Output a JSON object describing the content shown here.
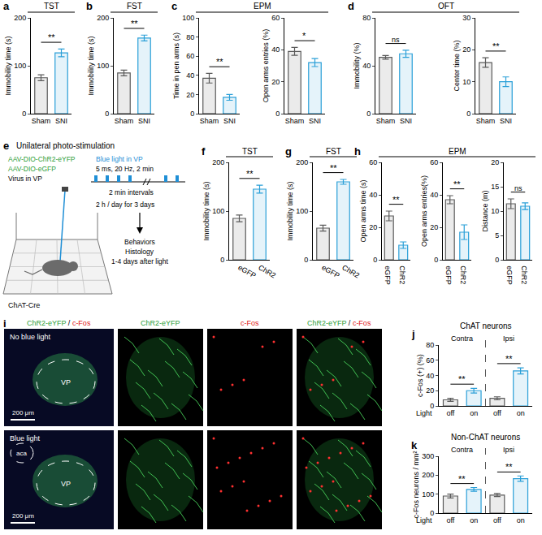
{
  "chart_data": [
    {
      "panel": "a",
      "type": "bar",
      "categories": [
        "Sham",
        "SNI"
      ],
      "values": [
        75,
        127
      ],
      "errors": [
        6,
        8
      ],
      "colors": [
        "#5a5a5a",
        "#2a9fd8"
      ],
      "y_label": "Immobility time (s)",
      "ylim": [
        0,
        200
      ],
      "yticks": [
        0,
        100,
        200
      ],
      "significance": [
        {
          "pair": [
            0,
            1
          ],
          "label": "**"
        }
      ]
    },
    {
      "panel": "b",
      "type": "bar",
      "categories": [
        "Sham",
        "SNI"
      ],
      "values": [
        85,
        158
      ],
      "errors": [
        6,
        6
      ],
      "colors": [
        "#5a5a5a",
        "#2a9fd8"
      ],
      "y_label": "Immobility time (s)",
      "ylim": [
        0,
        200
      ],
      "yticks": [
        0,
        100,
        200
      ],
      "significance": [
        {
          "pair": [
            0,
            1
          ],
          "label": "**"
        }
      ]
    },
    {
      "panel": "c",
      "type": "bar",
      "categories": [
        "Sham",
        "SNI"
      ],
      "values": [
        37,
        17
      ],
      "errors": [
        5,
        3
      ],
      "colors": [
        "#5a5a5a",
        "#2a9fd8"
      ],
      "y_label": "Time in pen arms (s)",
      "ylim": [
        0,
        100
      ],
      "yticks": [
        0,
        20,
        40,
        60,
        80,
        100
      ],
      "significance": [
        {
          "pair": [
            0,
            1
          ],
          "label": "**"
        }
      ]
    },
    {
      "panel": "c",
      "type": "bar",
      "categories": [
        "Sham",
        "SNI"
      ],
      "values": [
        39,
        32
      ],
      "errors": [
        2.5,
        2.5
      ],
      "colors": [
        "#5a5a5a",
        "#2a9fd8"
      ],
      "y_label": "Open arms entries (%)",
      "ylim": [
        0,
        60
      ],
      "yticks": [
        0,
        20,
        40,
        60
      ],
      "significance": [
        {
          "pair": [
            0,
            1
          ],
          "label": "*"
        }
      ]
    },
    {
      "panel": "d",
      "type": "bar",
      "categories": [
        "Sham",
        "SNI"
      ],
      "values": [
        47,
        50
      ],
      "errors": [
        1.5,
        3
      ],
      "colors": [
        "#5a5a5a",
        "#2a9fd8"
      ],
      "y_label": "Immobility (%)",
      "ylim": [
        0,
        80
      ],
      "yticks": [
        0,
        40,
        80
      ],
      "significance": [
        {
          "pair": [
            0,
            1
          ],
          "label": "ns"
        }
      ]
    },
    {
      "panel": "d",
      "type": "bar",
      "categories": [
        "Sham",
        "SNI"
      ],
      "values": [
        16,
        10
      ],
      "errors": [
        1.5,
        1.5
      ],
      "colors": [
        "#5a5a5a",
        "#2a9fd8"
      ],
      "y_label": "Center time (%)",
      "ylim": [
        0,
        30
      ],
      "yticks": [
        0,
        10,
        20,
        30
      ],
      "significance": [
        {
          "pair": [
            0,
            1
          ],
          "label": "**"
        }
      ]
    },
    {
      "panel": "f",
      "type": "bar",
      "categories": [
        "eGFP",
        "ChR2"
      ],
      "values": [
        85,
        145
      ],
      "errors": [
        7,
        8
      ],
      "colors": [
        "#5a5a5a",
        "#2a9fd8"
      ],
      "y_label": "Immobility time (s)",
      "ylim": [
        0,
        200
      ],
      "yticks": [
        0,
        100,
        200
      ],
      "significance": [
        {
          "pair": [
            0,
            1
          ],
          "label": "**"
        }
      ]
    },
    {
      "panel": "g",
      "type": "bar",
      "categories": [
        "eGFP",
        "ChR2"
      ],
      "values": [
        65,
        160
      ],
      "errors": [
        6,
        5
      ],
      "colors": [
        "#5a5a5a",
        "#2a9fd8"
      ],
      "y_label": "Immobility time (s)",
      "ylim": [
        0,
        200
      ],
      "yticks": [
        0,
        100,
        200
      ],
      "significance": [
        {
          "pair": [
            0,
            1
          ],
          "label": "**"
        }
      ]
    },
    {
      "panel": "h",
      "type": "bar",
      "categories": [
        "eGFP",
        "ChR2"
      ],
      "values": [
        27,
        9
      ],
      "errors": [
        3,
        2
      ],
      "colors": [
        "#5a5a5a",
        "#2a9fd8"
      ],
      "y_label": "Open arms time (s)",
      "ylim": [
        0,
        60
      ],
      "yticks": [
        0,
        20,
        40,
        60
      ],
      "significance": [
        {
          "pair": [
            0,
            1
          ],
          "label": "**"
        }
      ]
    },
    {
      "panel": "h",
      "type": "bar",
      "categories": [
        "eGFP",
        "ChR2"
      ],
      "values": [
        37,
        17
      ],
      "errors": [
        2.5,
        4.5
      ],
      "colors": [
        "#5a5a5a",
        "#2a9fd8"
      ],
      "y_label": "Open arms entries(%)",
      "ylim": [
        0,
        60
      ],
      "yticks": [
        0,
        20,
        40,
        60
      ],
      "significance": [
        {
          "pair": [
            0,
            1
          ],
          "label": "**"
        }
      ]
    },
    {
      "panel": "h",
      "type": "bar",
      "categories": [
        "eGFP",
        "ChR2"
      ],
      "values": [
        11.5,
        11
      ],
      "errors": [
        1,
        0.7
      ],
      "colors": [
        "#5a5a5a",
        "#2a9fd8"
      ],
      "y_label": "Distance (m)",
      "ylim": [
        0,
        20
      ],
      "yticks": [
        0,
        5,
        10,
        15,
        20
      ],
      "significance": [
        {
          "pair": [
            0,
            1
          ],
          "label": "ns"
        }
      ]
    },
    {
      "panel": "j",
      "type": "bar",
      "title": "ChAT neurons",
      "categories": [
        "off",
        "on",
        "off",
        "on"
      ],
      "values": [
        8,
        20,
        10,
        46
      ],
      "errors": [
        2,
        3,
        2,
        4
      ],
      "colors": [
        "#5a5a5a",
        "#2a9fd8",
        "#5a5a5a",
        "#2a9fd8"
      ],
      "y_label": "c-Fos (+) (%)",
      "ylim": [
        0,
        80
      ],
      "yticks": [
        0,
        20,
        40,
        60,
        80
      ],
      "group_labels": [
        {
          "text": "Contra",
          "pair": [
            0,
            1
          ]
        },
        {
          "text": "Ipsi",
          "pair": [
            2,
            3
          ]
        }
      ],
      "tick_row_label": "Light",
      "significance": [
        {
          "pair": [
            0,
            1
          ],
          "label": "**"
        },
        {
          "pair": [
            2,
            3
          ],
          "label": "**"
        }
      ]
    },
    {
      "panel": "k",
      "type": "bar",
      "title": "Non-ChAT neurons",
      "categories": [
        "off",
        "on",
        "off",
        "on"
      ],
      "values": [
        90,
        125,
        95,
        182
      ],
      "errors": [
        10,
        10,
        8,
        14
      ],
      "colors": [
        "#5a5a5a",
        "#2a9fd8",
        "#5a5a5a",
        "#2a9fd8"
      ],
      "y_label": "c-Fos neurons / mm²",
      "ylim": [
        0,
        300
      ],
      "yticks": [
        0,
        100,
        200,
        300
      ],
      "group_labels": [
        {
          "text": "Contra",
          "pair": [
            0,
            1
          ]
        },
        {
          "text": "Ipsi",
          "pair": [
            2,
            3
          ]
        }
      ],
      "tick_row_label": "Light",
      "significance": [
        {
          "pair": [
            0,
            1
          ],
          "label": "**"
        },
        {
          "pair": [
            2,
            3
          ],
          "label": "**"
        }
      ]
    }
  ],
  "headers": [
    {
      "text": "TST",
      "panel": "a"
    },
    {
      "text": "FST",
      "panel": "b"
    },
    {
      "text": "EPM",
      "panel": "c"
    },
    {
      "text": "OFT",
      "panel": "d"
    },
    {
      "text": "TST",
      "panel": "f"
    },
    {
      "text": "FST",
      "panel": "g"
    },
    {
      "text": "EPM",
      "panel": "h"
    }
  ],
  "schematic": {
    "panel": "e",
    "title": "Unilateral photo-stimulation",
    "virus": [
      {
        "text": "AAV-DIO-ChR2-eYFP",
        "color": "#2e9e3a"
      },
      {
        "text": "AAV-DIO-eGFP",
        "color": "#2e9e3a"
      },
      {
        "text": "Virus in VP",
        "color": "#000000"
      }
    ],
    "mouse_line": "ChAT-Cre",
    "protocol": [
      {
        "text": "Blue light in VP",
        "color": "#1f8fd6"
      },
      {
        "text": "5 ms, 20 Hz, 2 min",
        "color": "#000000"
      }
    ],
    "interval": "2 min intervals",
    "schedule": {
      "text": "2 h / day for 3 days",
      "color": "#000000"
    },
    "outcome": [
      "Behaviors",
      "Histology",
      "1-4 days after light"
    ]
  },
  "images": {
    "panel": "i",
    "columns": [
      [
        {
          "text": "ChR2-eYFP",
          "color": "#2e9e3a"
        },
        {
          "text": " / ",
          "color": "#000000"
        },
        {
          "text": "c-Fos",
          "color": "#e02020"
        }
      ],
      [
        {
          "text": "ChR2-eYFP",
          "color": "#2e9e3a"
        }
      ],
      [
        {
          "text": "c-Fos",
          "color": "#e02020"
        }
      ],
      [
        {
          "text": "ChR2-eYFP",
          "color": "#2e9e3a"
        },
        {
          "text": " / ",
          "color": "#000000"
        },
        {
          "text": "c-Fos",
          "color": "#e02020"
        }
      ]
    ],
    "rows": [
      "No blue light",
      "Blue light"
    ],
    "region": "VP",
    "tract": "aca",
    "scale_bar": "200 μm"
  }
}
